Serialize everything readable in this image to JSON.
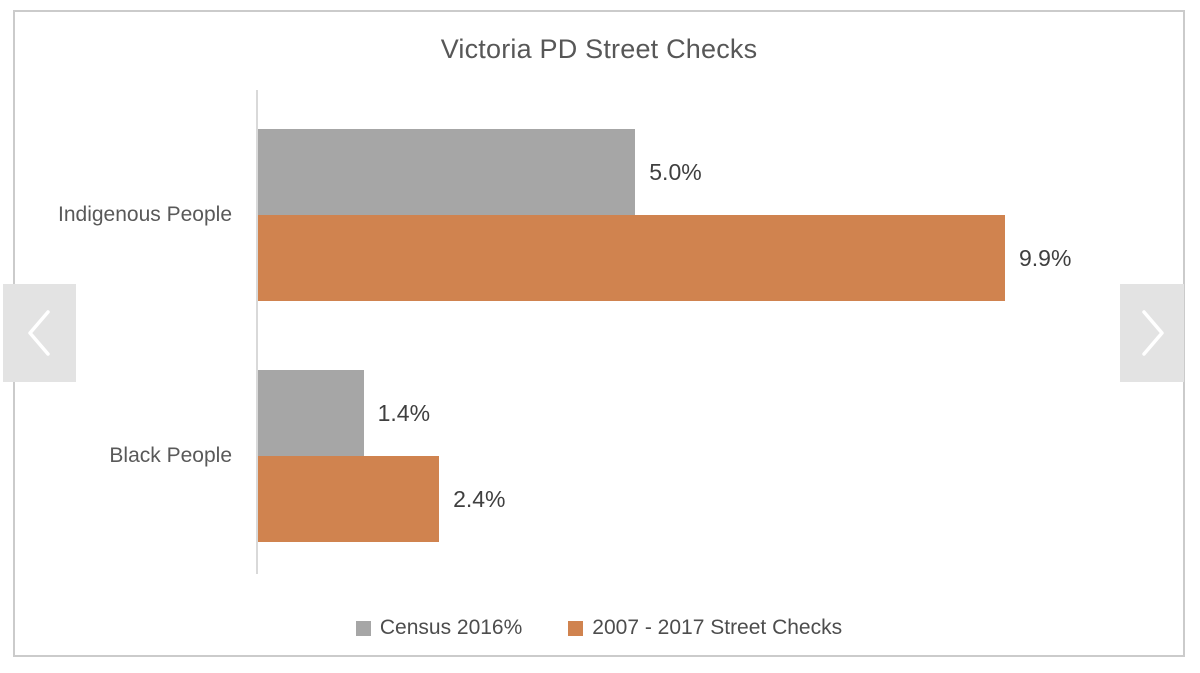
{
  "viewer": {
    "icons": {
      "prev": "chevron-left",
      "next": "chevron-right"
    },
    "arrow_background": "#e3e3e3",
    "arrow_glyph_color": "#ffffff",
    "card_border_color": "#cbcbcb"
  },
  "chart_data": {
    "type": "bar",
    "orientation": "horizontal",
    "title": "Victoria PD Street Checks",
    "categories": [
      "Indigenous People",
      "Black People"
    ],
    "series": [
      {
        "name": "Census 2016%",
        "color": "#a6a6a6",
        "values": [
          5.0,
          1.4
        ],
        "data_labels": [
          "5.0%",
          "1.4%"
        ]
      },
      {
        "name": "2007 - 2017 Street Checks",
        "color": "#d0834f",
        "values": [
          9.9,
          2.4
        ],
        "data_labels": [
          "9.9%",
          "2.4%"
        ]
      }
    ],
    "xlim": [
      0,
      11
    ],
    "xlabel": "",
    "ylabel": "",
    "grid": false,
    "legend_position": "bottom",
    "axis_line_color": "#d9d9d9",
    "title_color": "#575757",
    "label_color": "#595959",
    "data_label_color": "#3f3f3f"
  }
}
